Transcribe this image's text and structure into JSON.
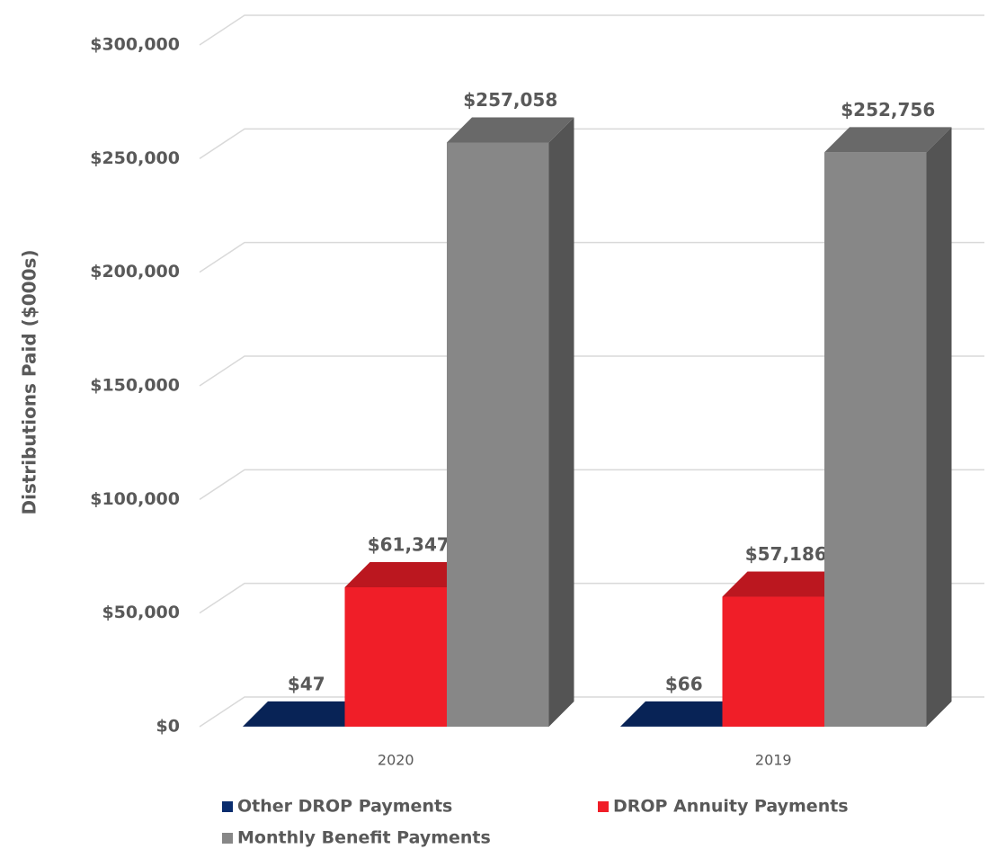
{
  "chart_data": {
    "type": "bar3d",
    "y_label": "Distributions Paid ($000s)",
    "categories": [
      "2020",
      "2019"
    ],
    "series": [
      {
        "name": "Other DROP Payments",
        "color": "#0a2d6e",
        "values": [
          47,
          66
        ],
        "value_labels": [
          "$47",
          "$66"
        ]
      },
      {
        "name": "DROP Annuity Payments",
        "color": "#f01e28",
        "values": [
          61347,
          57186
        ],
        "value_labels": [
          "$61,347",
          "$57,186"
        ]
      },
      {
        "name": "Monthly Benefit Payments",
        "color": "#878787",
        "values": [
          257058,
          252756
        ],
        "value_labels": [
          "$257,058",
          "$252,756"
        ]
      }
    ],
    "ylim": [
      0,
      300000
    ],
    "yticks": [
      {
        "value": 0,
        "label": "$0"
      },
      {
        "value": 50000,
        "label": "$50,000"
      },
      {
        "value": 100000,
        "label": "$100,000"
      },
      {
        "value": 150000,
        "label": "$150,000"
      },
      {
        "value": 200000,
        "label": "$200,000"
      },
      {
        "value": 250000,
        "label": "$250,000"
      },
      {
        "value": 300000,
        "label": "$300,000"
      }
    ],
    "grid": true
  }
}
